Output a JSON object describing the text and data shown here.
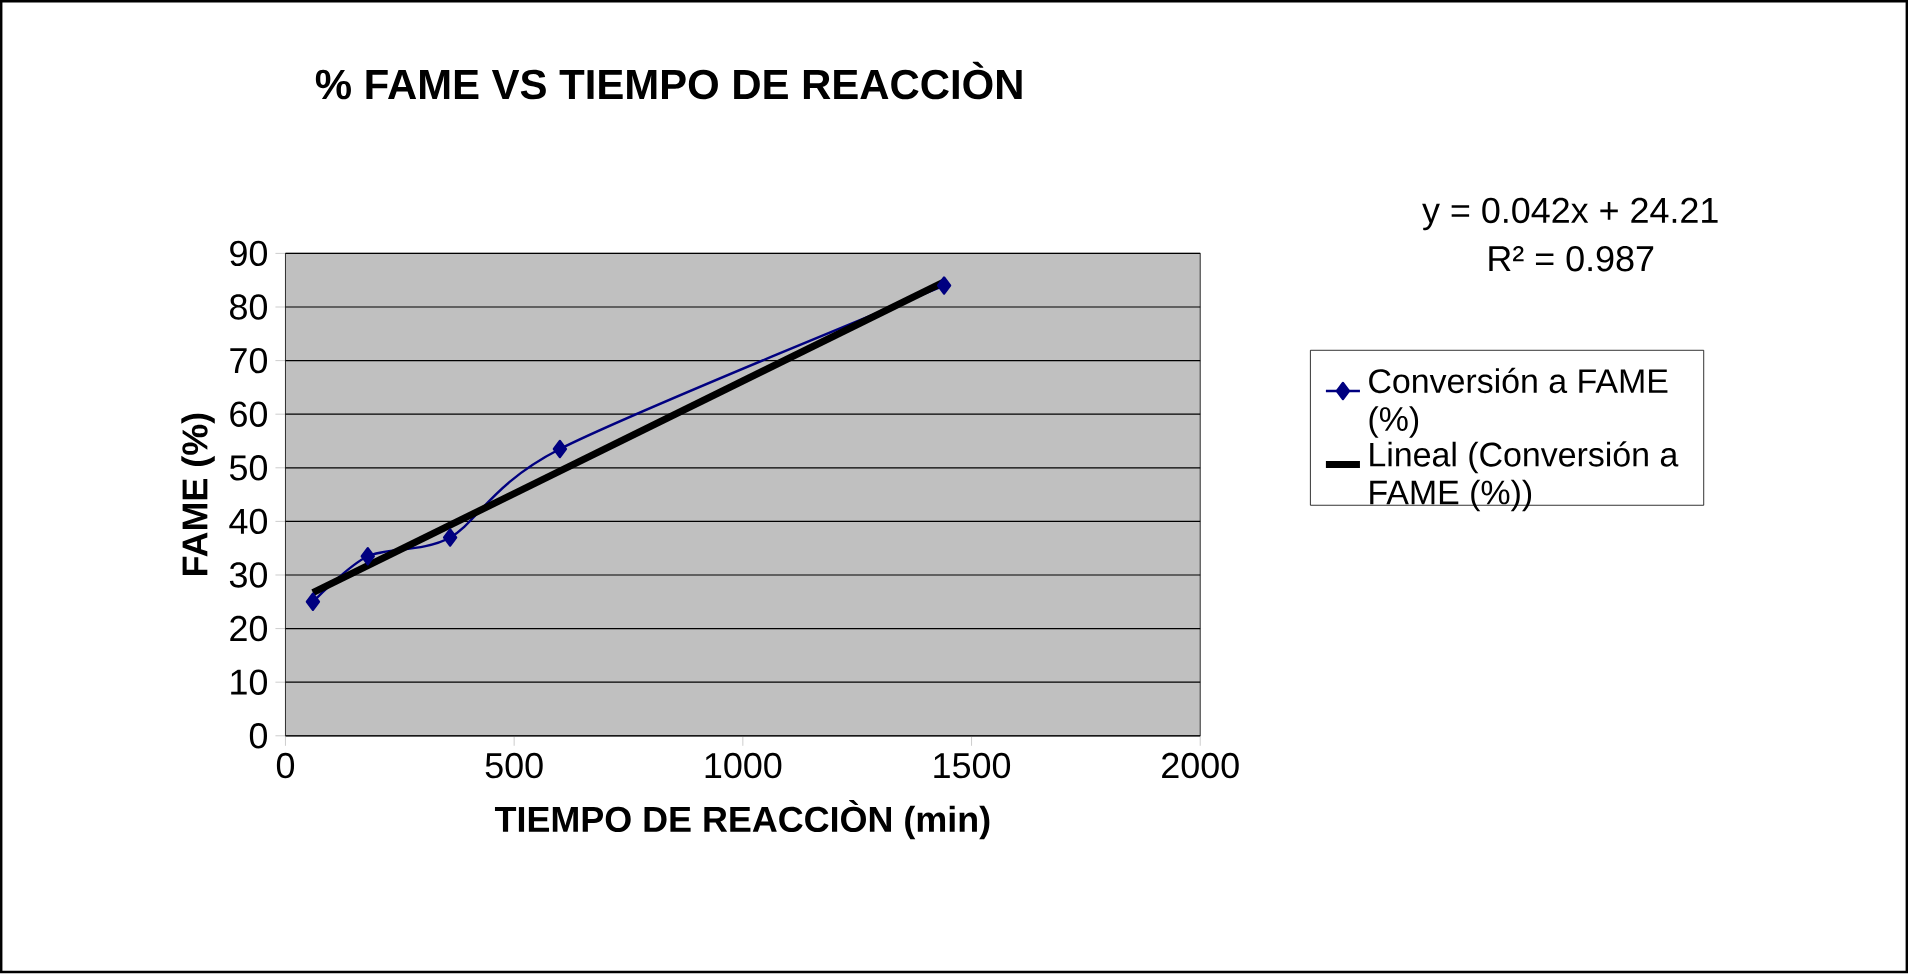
{
  "chart_data": {
    "type": "line",
    "title": "% FAME VS TIEMPO DE REACCIÒN",
    "xlabel": "TIEMPO DE REACCIÒN (min)",
    "ylabel": "FAME (%)",
    "xlim": [
      0,
      2000
    ],
    "xticks": [
      0,
      500,
      1000,
      1500,
      2000
    ],
    "ylim": [
      0,
      90
    ],
    "yticks": [
      0,
      10,
      20,
      30,
      40,
      50,
      60,
      70,
      80,
      90
    ],
    "grid": "y",
    "legend": "right",
    "annotations": [
      "y = 0.042x + 24.21",
      "R² = 0.987"
    ],
    "series": [
      {
        "name": "Conversión a FAME (%)",
        "color": "#000080",
        "marker": "diamond",
        "x": [
          60,
          180,
          360,
          600,
          1440
        ],
        "values": [
          25,
          33.5,
          37,
          53.5,
          84
        ]
      },
      {
        "name": "Lineal (Conversión a FAME (%))",
        "color": "#000000",
        "marker": "none",
        "x": [
          60,
          1440
        ],
        "values": [
          26.7,
          84.7
        ]
      }
    ]
  }
}
